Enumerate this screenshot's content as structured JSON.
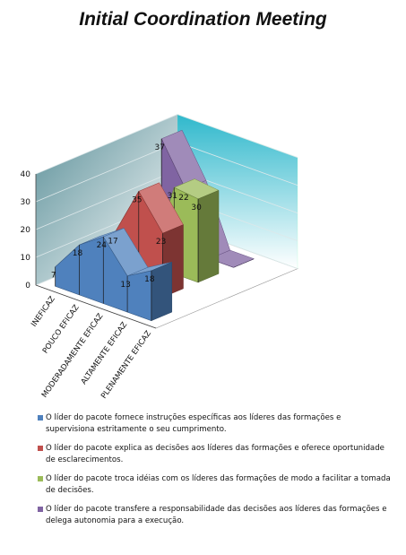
{
  "chart_data": {
    "type": "area",
    "title": "Initial Coordination Meeting",
    "categories": [
      "INEFICAZ",
      "POUCO EFICAZ",
      "MODERADAMENTE EFICAZ",
      "ALTAMENTE EFICAZ",
      "PLENAMENTE EFICAZ"
    ],
    "ylim": [
      0,
      40
    ],
    "yticks": [
      0,
      10,
      20,
      30,
      40
    ],
    "grid": true,
    "legend_position": "bottom",
    "series": [
      {
        "name": "O líder do pacote fornece instruções específicas aos líderes das formações e supervisiona estritamente o seu cumprimento.",
        "color": "#4f81bd",
        "values": [
          7,
          18,
          24,
          13,
          18
        ]
      },
      {
        "name": "O líder do pacote explica as decisões aos líderes das formações e oferece oportunidade de esclarecimentos.",
        "color": "#c0504d",
        "values": [
          0,
          17,
          35,
          23,
          null
        ]
      },
      {
        "name": "O líder do pacote troca idéias com os líderes das formações de modo a facilitar a tomada de decisões.",
        "color": "#9bbb59",
        "values": [
          0,
          0,
          31,
          30,
          null
        ]
      },
      {
        "name": "O líder do pacote transfere a responsabilidade das decisões aos líderes das formações e delega autonomia para a execução.",
        "color": "#8064a2",
        "values": [
          37,
          22,
          0,
          0,
          null
        ]
      }
    ],
    "data_labels": [
      {
        "series": 0,
        "index": 0,
        "text": "7"
      },
      {
        "series": 0,
        "index": 1,
        "text": "18"
      },
      {
        "series": 0,
        "index": 2,
        "text": "24"
      },
      {
        "series": 0,
        "index": 3,
        "text": "13"
      },
      {
        "series": 0,
        "index": 4,
        "text": "18"
      },
      {
        "series": 1,
        "index": 1,
        "text": "17"
      },
      {
        "series": 1,
        "index": 2,
        "text": "35"
      },
      {
        "series": 1,
        "index": 3,
        "text": "23"
      },
      {
        "series": 2,
        "index": 2,
        "text": "31"
      },
      {
        "series": 2,
        "index": 3,
        "text": "30"
      },
      {
        "series": 3,
        "index": 0,
        "text": "37"
      },
      {
        "series": 3,
        "index": 1,
        "text": "22"
      }
    ]
  },
  "colors": {
    "wall_back": "#7fd0dc",
    "wall_side": "#9aa8ac",
    "axis_text": "#111111"
  }
}
